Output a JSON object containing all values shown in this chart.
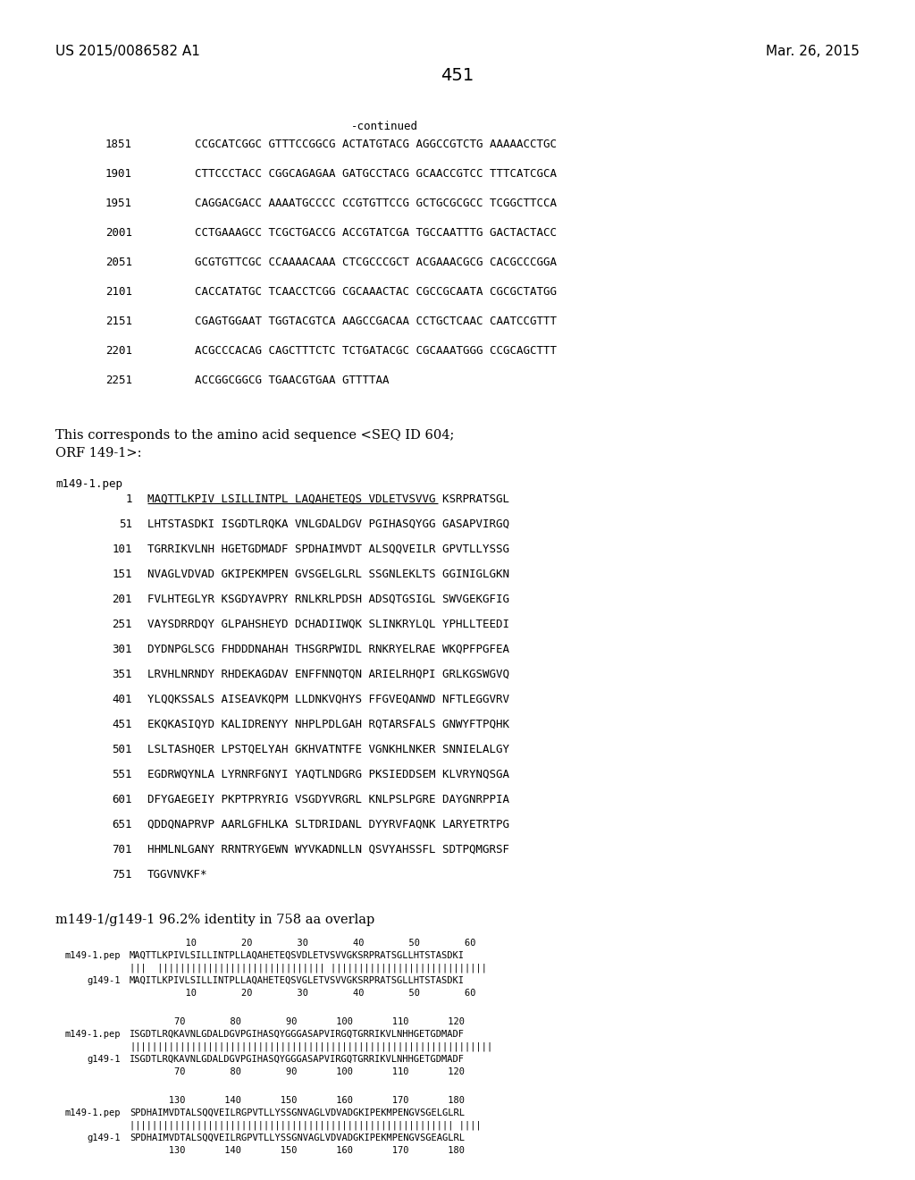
{
  "header_left": "US 2015/0086582 A1",
  "header_right": "Mar. 26, 2015",
  "page_number": "451",
  "continued_label": "-continued",
  "background_color": "#ffffff",
  "dna_lines": [
    [
      "1851",
      "CCGCATCGGC GTTTCCGGCG ACTATGTACG AGGCCGTCTG AAAAACCTGC"
    ],
    [
      "1901",
      "CTTCCCTACC CGGCAGAGAA GATGCCTACG GCAACCGTCC TTTCATCGCA"
    ],
    [
      "1951",
      "CAGGACGACC AAAATGCCCC CCGTGTTCCG GCTGCGCGCC TCGGCTTCCA"
    ],
    [
      "2001",
      "CCTGAAAGCC TCGCTGACCG ACCGTATCGA TGCCAATTTG GACTACTACC"
    ],
    [
      "2051",
      "GCGTGTTCGC CCAAAACAAA CTCGCCCGCT ACGAAACGCG CACGCCCGGA"
    ],
    [
      "2101",
      "CACCATATGC TCAACCTCGG CGCAAACTAC CGCCGCAATA CGCGCTATGG"
    ],
    [
      "2151",
      "CGAGTGGAAT TGGTACGTCA AAGCCGACAA CCTGCTCAAC CAATCCGTTT"
    ],
    [
      "2201",
      "ACGCCCACAG CAGCTTTCTC TCTGATACGC CGCAAATGGG CCGCAGCTTT"
    ],
    [
      "2251",
      "ACCGGCGGCG TGAACGTGAA GTTTTAA"
    ]
  ],
  "corresponds_text_1": "This corresponds to the amino acid sequence <SEQ ID 604;",
  "corresponds_text_2": "ORF 149-1>:",
  "peptide_label": "m149-1.pep",
  "peptide_lines": [
    [
      "1",
      "MAQTTLKPIV LSILLINTPL LAQAHETEQS VDLETVSVVG KSRPRATSGL",
      true
    ],
    [
      "51",
      "LHTSTASDKI ISGDTLRQKA VNLGDALDGV PGIHASQYGG GASAPVIRGQ",
      false
    ],
    [
      "101",
      "TGRRIKVLNH HGETGDMADF SPDHAIMVDT ALSQQVEILR GPVTLLYSSG",
      false
    ],
    [
      "151",
      "NVAGLVDVAD GKIPEKMPEN GVSGELGLRL SSGNLEKLTS GGINIGLGKN",
      false
    ],
    [
      "201",
      "FVLHTEGLYR KSGDYAVPRY RNLKRLPDSH ADSQTGSIGL SWVGEKGFIG",
      false
    ],
    [
      "251",
      "VAYSDRRDQY GLPAHSHEYD DCHADIIWQK SLINKRYLQL YPHLLTEEDI",
      false
    ],
    [
      "301",
      "DYDNPGLSCG FHDDDNAHAH THSGRPWIDL RNKRYELRAE WKQPFPGFEA",
      false
    ],
    [
      "351",
      "LRVHLNRNDY RHDEKAGDAV ENFFNNQTQN ARIELRHQPI GRLKGSWGVQ",
      false
    ],
    [
      "401",
      "YLQQKSSALS AISEAVKQPM LLDNKVQHYS FFGVEQANWD NFTLEGGVRV",
      false
    ],
    [
      "451",
      "EKQKASIQYD KALIDRENYY NHPLPDLGAH RQTARSFALS GNWYFTPQHK",
      false
    ],
    [
      "501",
      "LSLTASHQER LPSTQELYAH GKHVATNTFE VGNKHLNKER SNNIELALGY",
      false
    ],
    [
      "551",
      "EGDRWQYNLA LYRNRFGNYI YAQTLNDGRG PKSIEDDSEM KLVRYNQSGA",
      false
    ],
    [
      "601",
      "DFYGAEGEIY PKPTPRYRIG VSGDYVRGRL KNLPSLPGRE DAYGNRPPIA",
      false
    ],
    [
      "651",
      "QDDQNAPRVP AARLGFHLKA SLTDRIDANL DYYRVFAQNK LARYETRTPG",
      false
    ],
    [
      "701",
      "HHMLNLGANY RRNTRYGEWN WYVKADNLLN QSVYAHSSFL SDTPQMGRSF",
      false
    ],
    [
      "751",
      "TGGVNVKF*",
      false
    ]
  ],
  "identity_label": "m149-1/g149-1 96.2% identity in 758 aa overlap",
  "align_blocks": [
    {
      "ruler": "          10        20        30        40        50        60",
      "label1": "m149-1.pep",
      "seq1": "MAQTTLKPIVLSILLINTPLLAQAHETEQSVDLETVSVVGKSRPRATSGLLHTSTASDKI",
      "bars": "|||  |||||||||||||||||||||||||||||| ||||||||||||||||||||||||||||",
      "label2": "g149-1",
      "seq2": "MAQITLKPIVLSILLINTPLLAQAHETEQSVGLETVSVVGKSRPRATSGLLHTSTASDKI",
      "ruler2": "          10        20        30        40        50        60"
    },
    {
      "ruler": "        70        80        90       100       110       120",
      "label1": "m149-1.pep",
      "seq1": "ISGDTLRQKAVNLGDALDGVPGIHASQYGGGASAPVIRGQTGRRIKVLNHHGETGDMADF",
      "bars": "|||||||||||||||||||||||||||||||||||||||||||||||||||||||||||||||||",
      "label2": "g149-1",
      "seq2": "ISGDTLRQKAVNLGDALDGVPGIHASQYGGGASAPVIRGQTGRRIKVLNHHGETGDMADF",
      "ruler2": "        70        80        90       100       110       120"
    },
    {
      "ruler": "       130       140       150       160       170       180",
      "label1": "m149-1.pep",
      "seq1": "SPDHAIMVDTALSQQVEILRGPVTLLYSSGNVAGLVDVADGKIPEKMPENGVSGELGLRL",
      "bars": "|||||||||||||||||||||||||||||||||||||||||||||||||||||||||| ||||",
      "label2": "g149-1",
      "seq2": "SPDHAIMVDTALSQQVEILRGPVTLLYSSGNVAGLVDVADGKIPEKMPENGVSGEAGLRL",
      "ruler2": "       130       140       150       160       170       180"
    }
  ]
}
